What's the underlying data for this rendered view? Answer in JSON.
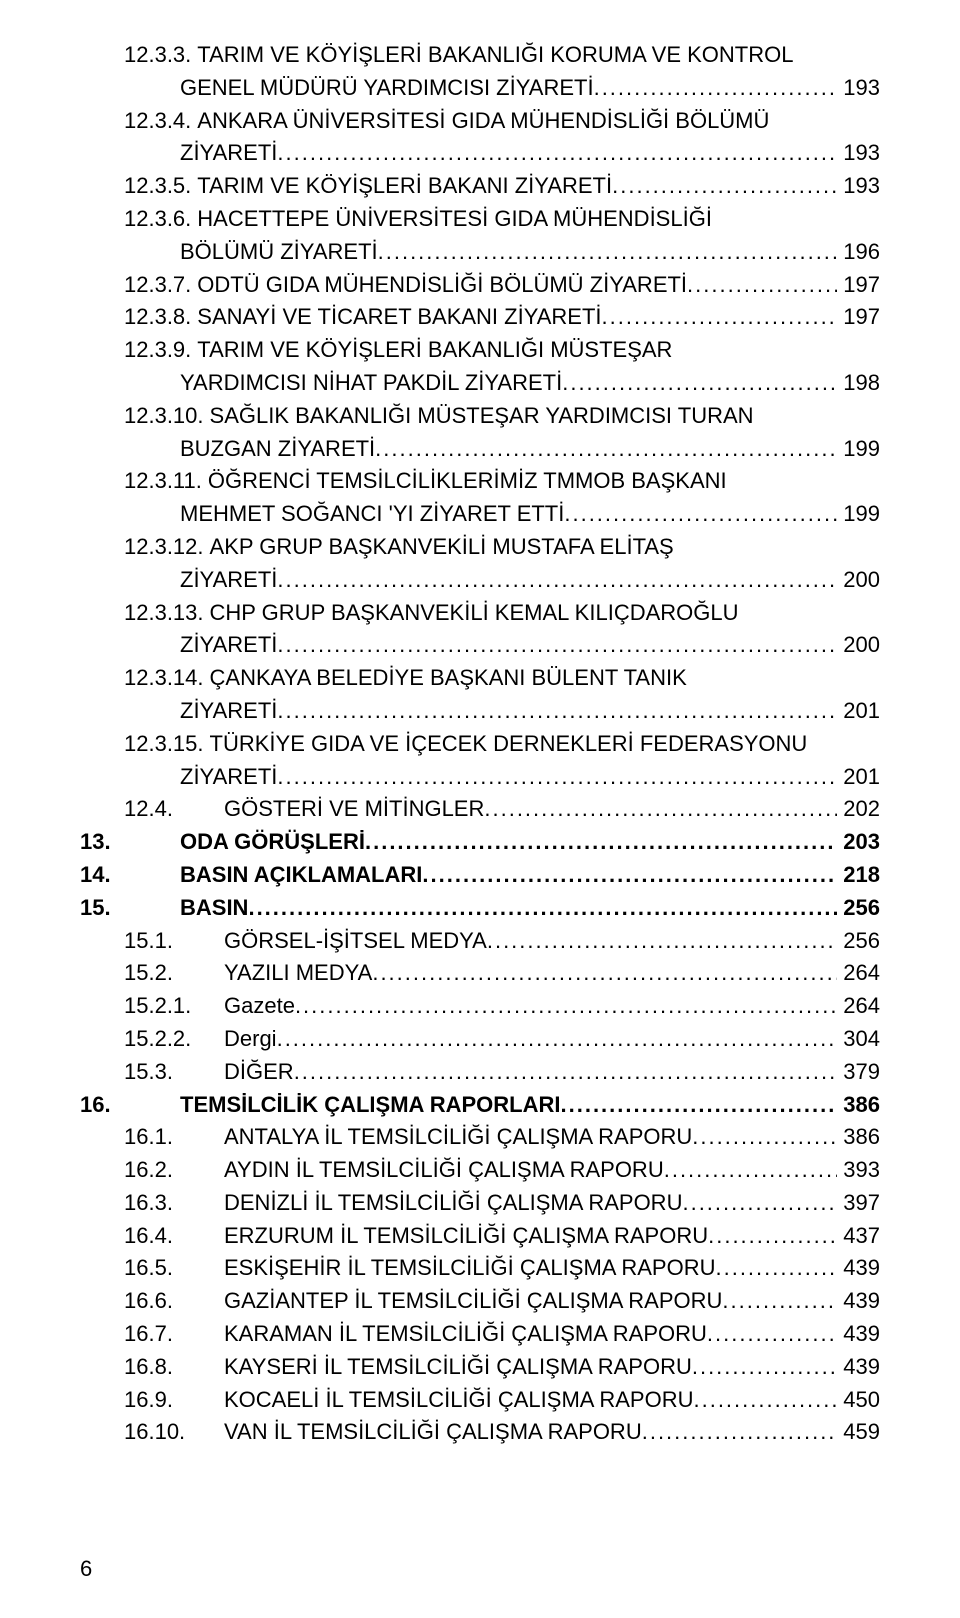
{
  "page_number": "6",
  "toc": [
    {
      "num": "12.3.3.",
      "title_lines": [
        "TARIM VE KÖYİŞLERİ BAKANLIĞI KORUMA VE KONTROL",
        "GENEL MÜDÜRÜ YARDIMCISI ZİYARETİ"
      ],
      "page": "193",
      "indent": 1,
      "bold": false
    },
    {
      "num": "12.3.4.",
      "title_lines": [
        "ANKARA ÜNİVERSİTESİ GIDA MÜHENDİSLİĞİ BÖLÜMÜ",
        "ZİYARETİ"
      ],
      "page": "193",
      "indent": 1,
      "bold": false
    },
    {
      "num": "12.3.5.",
      "title_lines": [
        "TARIM VE KÖYİŞLERİ BAKANI ZİYARETİ"
      ],
      "page": "193",
      "indent": 1,
      "bold": false
    },
    {
      "num": "12.3.6.",
      "title_lines": [
        "HACETTEPE ÜNİVERSİTESİ GIDA MÜHENDİSLİĞİ",
        "BÖLÜMÜ ZİYARETİ"
      ],
      "page": "196",
      "indent": 1,
      "bold": false
    },
    {
      "num": "12.3.7.",
      "title_lines": [
        "ODTÜ GIDA MÜHENDİSLİĞİ BÖLÜMÜ ZİYARETİ"
      ],
      "page": "197",
      "indent": 1,
      "bold": false
    },
    {
      "num": "12.3.8.",
      "title_lines": [
        "SANAYİ VE TİCARET BAKANI ZİYARETİ"
      ],
      "page": "197",
      "indent": 1,
      "bold": false
    },
    {
      "num": "12.3.9.",
      "title_lines": [
        "TARIM VE KÖYİŞLERİ BAKANLIĞI MÜSTEŞAR",
        "YARDIMCISI NİHAT PAKDİL ZİYARETİ"
      ],
      "page": "198",
      "indent": 1,
      "bold": false
    },
    {
      "num": "12.3.10.",
      "title_lines": [
        "SAĞLIK BAKANLIĞI MÜSTEŞAR YARDIMCISI TURAN",
        "BUZGAN ZİYARETİ"
      ],
      "page": "199",
      "indent": 1,
      "bold": false
    },
    {
      "num": "12.3.11.",
      "title_lines": [
        "ÖĞRENCİ TEMSİLCİLİKLERİMİZ TMMOB BAŞKANI",
        "MEHMET SOĞANCI 'YI ZİYARET ETTİ"
      ],
      "page": "199",
      "indent": 1,
      "bold": false
    },
    {
      "num": "12.3.12.",
      "title_lines": [
        "AKP GRUP BAŞKANVEKİLİ MUSTAFA ELİTAŞ",
        "ZİYARETİ"
      ],
      "page": "200",
      "indent": 1,
      "bold": false
    },
    {
      "num": "12.3.13.",
      "title_lines": [
        "CHP GRUP BAŞKANVEKİLİ KEMAL KILIÇDAROĞLU",
        "ZİYARETİ"
      ],
      "page": "200",
      "indent": 1,
      "bold": false
    },
    {
      "num": "12.3.14.",
      "title_lines": [
        "ÇANKAYA BELEDİYE BAŞKANI BÜLENT TANIK",
        "ZİYARETİ"
      ],
      "page": "201",
      "indent": 1,
      "bold": false
    },
    {
      "num": "12.3.15.",
      "title_lines": [
        "TÜRKİYE GIDA VE İÇECEK DERNEKLERİ FEDERASYONU",
        "ZİYARETİ"
      ],
      "page": "201",
      "indent": 1,
      "bold": false
    },
    {
      "num": "12.4.",
      "title_lines": [
        "GÖSTERİ VE MİTİNGLER"
      ],
      "page": "202",
      "indent": 1,
      "bold": false,
      "sep": true
    },
    {
      "num": "13.",
      "title_lines": [
        "ODA GÖRÜŞLERİ"
      ],
      "page": "203",
      "indent": 0,
      "bold": true,
      "sep": true
    },
    {
      "num": "14.",
      "title_lines": [
        "BASIN AÇIKLAMALARI"
      ],
      "page": "218",
      "indent": 0,
      "bold": true,
      "sep": true
    },
    {
      "num": "15.",
      "title_lines": [
        "BASIN"
      ],
      "page": "256",
      "indent": 0,
      "bold": true,
      "sep": true
    },
    {
      "num": "15.1.",
      "title_lines": [
        "GÖRSEL-İŞİTSEL MEDYA"
      ],
      "page": "256",
      "indent": 1,
      "bold": false,
      "sep": true
    },
    {
      "num": "15.2.",
      "title_lines": [
        "YAZILI MEDYA"
      ],
      "page": "264",
      "indent": 1,
      "bold": false,
      "sep": true
    },
    {
      "num": "15.2.1.",
      "title_lines": [
        "Gazete"
      ],
      "page": "264",
      "indent": 1,
      "bold": false,
      "sep": true
    },
    {
      "num": "15.2.2.",
      "title_lines": [
        "Dergi"
      ],
      "page": "304",
      "indent": 1,
      "bold": false,
      "sep": true
    },
    {
      "num": "15.3.",
      "title_lines": [
        "DİĞER"
      ],
      "page": "379",
      "indent": 1,
      "bold": false,
      "sep": true
    },
    {
      "num": "16.",
      "title_lines": [
        "TEMSİLCİLİK ÇALIŞMA RAPORLARI"
      ],
      "page": "386",
      "indent": 0,
      "bold": true,
      "sep": true
    },
    {
      "num": "16.1.",
      "title_lines": [
        "ANTALYA İL TEMSİLCİLİĞİ ÇALIŞMA RAPORU"
      ],
      "page": "386",
      "indent": 1,
      "bold": false,
      "sep": true
    },
    {
      "num": "16.2.",
      "title_lines": [
        "AYDIN İL TEMSİLCİLİĞİ ÇALIŞMA RAPORU"
      ],
      "page": "393",
      "indent": 1,
      "bold": false,
      "sep": true
    },
    {
      "num": "16.3.",
      "title_lines": [
        "DENİZLİ İL TEMSİLCİLİĞİ ÇALIŞMA RAPORU"
      ],
      "page": "397",
      "indent": 1,
      "bold": false,
      "sep": true
    },
    {
      "num": "16.4.",
      "title_lines": [
        "ERZURUM İL TEMSİLCİLİĞİ ÇALIŞMA RAPORU"
      ],
      "page": "437",
      "indent": 1,
      "bold": false,
      "sep": true
    },
    {
      "num": "16.5.",
      "title_lines": [
        "ESKİŞEHİR İL TEMSİLCİLİĞİ ÇALIŞMA RAPORU"
      ],
      "page": "439",
      "indent": 1,
      "bold": false,
      "sep": true
    },
    {
      "num": "16.6.",
      "title_lines": [
        "GAZİANTEP İL TEMSİLCİLİĞİ ÇALIŞMA RAPORU"
      ],
      "page": "439",
      "indent": 1,
      "bold": false,
      "sep": true
    },
    {
      "num": "16.7.",
      "title_lines": [
        "KARAMAN İL TEMSİLCİLİĞİ ÇALIŞMA RAPORU"
      ],
      "page": "439",
      "indent": 1,
      "bold": false,
      "sep": true
    },
    {
      "num": "16.8.",
      "title_lines": [
        "KAYSERİ İL TEMSİLCİLİĞİ ÇALIŞMA RAPORU"
      ],
      "page": "439",
      "indent": 1,
      "bold": false,
      "sep": true
    },
    {
      "num": "16.9.",
      "title_lines": [
        "KOCAELİ İL TEMSİLCİLİĞİ ÇALIŞMA RAPORU"
      ],
      "page": "450",
      "indent": 1,
      "bold": false,
      "sep": true
    },
    {
      "num": "16.10.",
      "title_lines": [
        "VAN İL TEMSİLCİLİĞİ ÇALIŞMA RAPORU"
      ],
      "page": "459",
      "indent": 1,
      "bold": false,
      "sep": true
    }
  ]
}
